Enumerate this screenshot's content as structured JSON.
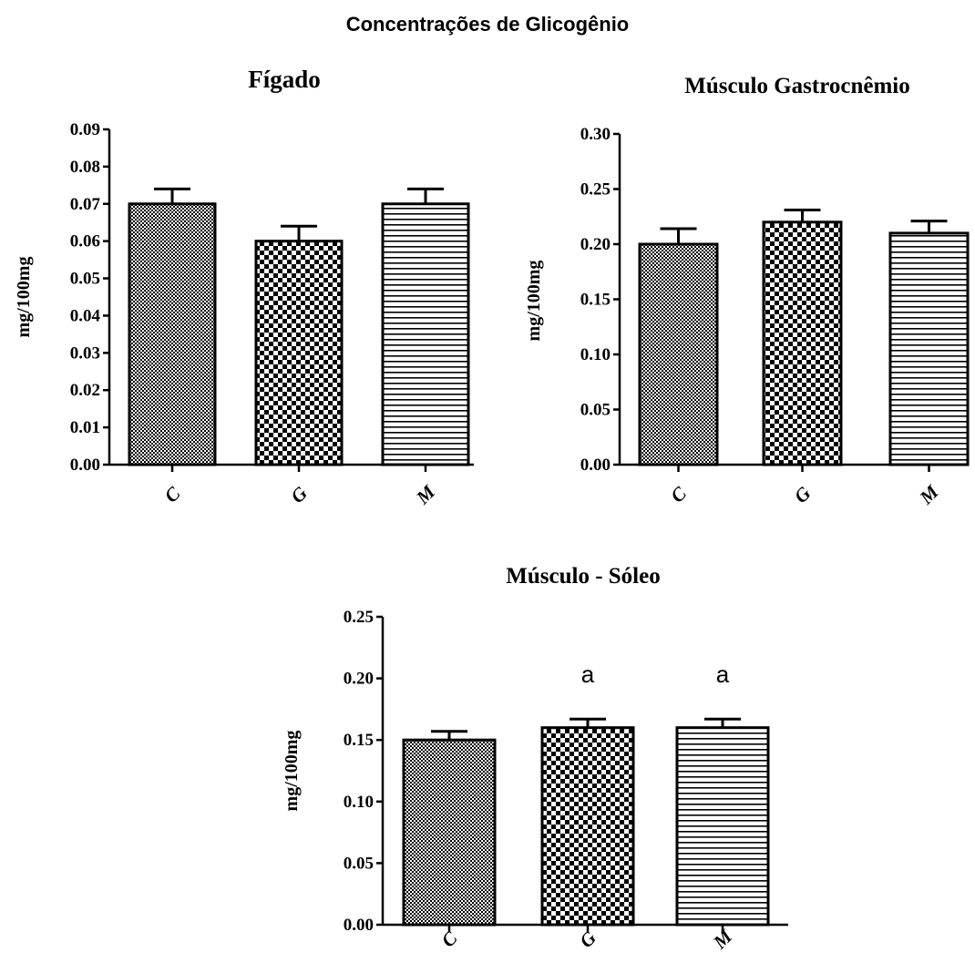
{
  "figure": {
    "title": "Concentrações de Glicogênio"
  },
  "chart_data": [
    {
      "type": "bar",
      "title": "Fígado",
      "ylabel": "mg/100mg",
      "xlabel": "",
      "categories": [
        "C",
        "G",
        "M"
      ],
      "values": [
        0.07,
        0.06,
        0.07
      ],
      "errors": [
        0.004,
        0.004,
        0.004
      ],
      "annotations": [
        "",
        "",
        ""
      ],
      "ylim": [
        0,
        0.09
      ],
      "yticks": [
        "0.00",
        "0.01",
        "0.02",
        "0.03",
        "0.04",
        "0.05",
        "0.06",
        "0.07",
        "0.08",
        "0.09"
      ],
      "patterns": [
        "dots",
        "checker",
        "hlines"
      ]
    },
    {
      "type": "bar",
      "title": "Músculo Gastrocnêmio",
      "ylabel": "mg/100mg",
      "xlabel": "",
      "categories": [
        "C",
        "G",
        "M"
      ],
      "values": [
        0.2,
        0.22,
        0.21
      ],
      "errors": [
        0.014,
        0.011,
        0.011
      ],
      "annotations": [
        "",
        "",
        ""
      ],
      "ylim": [
        0,
        0.3
      ],
      "yticks": [
        "0.00",
        "0.05",
        "0.10",
        "0.15",
        "0.20",
        "0.25",
        "0.30"
      ],
      "patterns": [
        "dots",
        "checker",
        "hlines"
      ]
    },
    {
      "type": "bar",
      "title": "Músculo - Sóleo",
      "ylabel": "mg/100mg",
      "xlabel": "",
      "categories": [
        "C",
        "G",
        "M"
      ],
      "values": [
        0.15,
        0.16,
        0.16
      ],
      "errors": [
        0.007,
        0.007,
        0.007
      ],
      "annotations": [
        "",
        "a",
        "a"
      ],
      "ylim": [
        0,
        0.25
      ],
      "yticks": [
        "0.00",
        "0.05",
        "0.10",
        "0.15",
        "0.20",
        "0.25"
      ],
      "patterns": [
        "dots",
        "checker",
        "hlines"
      ]
    }
  ]
}
